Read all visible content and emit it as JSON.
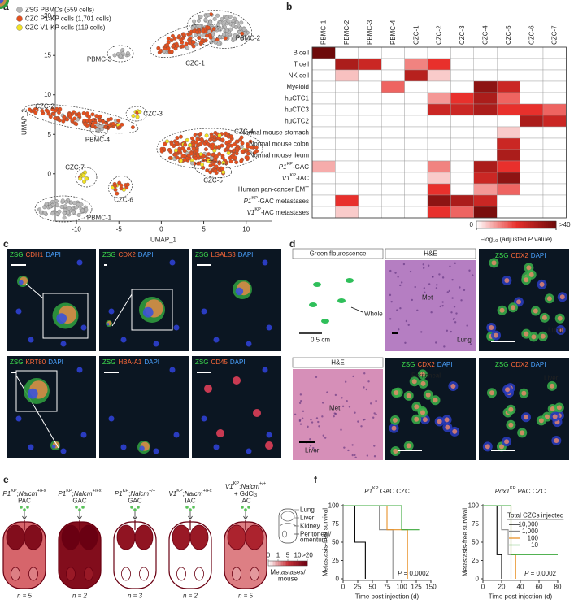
{
  "panel_labels": [
    "a",
    "b",
    "c",
    "d",
    "e",
    "f"
  ],
  "chart_data": [
    {
      "type": "scatter",
      "xlabel": "UMAP_1",
      "ylabel": "UMAP_2",
      "xlim": [
        -12.5,
        13
      ],
      "ylim": [
        -6,
        21
      ],
      "xticks": [
        -10,
        -5,
        0,
        5,
        10
      ],
      "yticks": [
        0,
        5,
        10,
        15,
        20
      ],
      "series": [
        {
          "name": "ZSG PBMCs (559 cells)",
          "color": "#b8b8b8"
        },
        {
          "name": "CZC P1-KP cells (1,701 cells)",
          "color": "#e4501e"
        },
        {
          "name": "CZC V1-KP cells (119 cells)",
          "color": "#f2e224"
        }
      ],
      "annotations": [
        "PBMC-2",
        "PBMC-3",
        "CZC-1",
        "CZC-2",
        "CZC-3",
        "PBMC-4",
        "CZC-4",
        "CZC-7",
        "CZC-5",
        "CZC-6",
        "PBMC-1"
      ]
    },
    {
      "type": "heatmap",
      "columns": [
        "PBMC-1",
        "PBMC-2",
        "PBMC-3",
        "PBMC-4",
        "CZC-1",
        "CZC-2",
        "CZC-3",
        "CZC-4",
        "CZC-5",
        "CZC-6",
        "CZC-7"
      ],
      "rows": [
        "B cell",
        "T cell",
        "NK cell",
        "Myeloid",
        "huCTC1",
        "huCTC3",
        "huCTC2",
        "Normal mouse stomach",
        "Normal mouse colon",
        "Normal mouse ileum",
        [
          {
            "t": "P1",
            "style": "italic"
          },
          {
            "t": "KP",
            "style": "sup"
          },
          {
            "t": "-GAC"
          }
        ],
        [
          {
            "t": "V1",
            "style": "italic"
          },
          {
            "t": "KP",
            "style": "sup"
          },
          {
            "t": "-IAC"
          }
        ],
        "Human pan-cancer EMT",
        [
          {
            "t": "P1",
            "style": "italic"
          },
          {
            "t": "KP",
            "style": "sup"
          },
          {
            "t": "-GAC metastases"
          }
        ],
        [
          {
            "t": "V1",
            "style": "italic"
          },
          {
            "t": "KP",
            "style": "sup"
          },
          {
            "t": "-IAC metastases"
          }
        ]
      ],
      "values": [
        [
          40,
          0,
          0,
          0,
          0,
          0,
          0,
          0,
          0,
          0,
          0
        ],
        [
          0,
          30,
          25,
          0,
          12,
          20,
          0,
          0,
          0,
          0,
          0
        ],
        [
          0,
          6,
          0,
          0,
          28,
          5,
          0,
          0,
          0,
          0,
          0
        ],
        [
          0,
          0,
          0,
          15,
          0,
          0,
          0,
          35,
          25,
          0,
          0
        ],
        [
          0,
          0,
          0,
          0,
          0,
          10,
          20,
          30,
          15,
          0,
          0
        ],
        [
          0,
          0,
          0,
          0,
          0,
          25,
          25,
          30,
          20,
          20,
          15
        ],
        [
          0,
          0,
          0,
          0,
          0,
          0,
          0,
          0,
          0,
          30,
          25
        ],
        [
          0,
          0,
          0,
          0,
          0,
          0,
          0,
          0,
          5,
          0,
          0
        ],
        [
          0,
          0,
          0,
          0,
          0,
          0,
          0,
          0,
          25,
          0,
          0
        ],
        [
          0,
          0,
          0,
          0,
          0,
          0,
          0,
          0,
          30,
          0,
          0
        ],
        [
          8,
          0,
          0,
          0,
          0,
          12,
          0,
          30,
          20,
          0,
          0
        ],
        [
          0,
          0,
          0,
          0,
          0,
          5,
          0,
          25,
          35,
          0,
          0
        ],
        [
          0,
          0,
          0,
          0,
          0,
          20,
          0,
          10,
          15,
          0,
          0
        ],
        [
          0,
          20,
          0,
          0,
          0,
          35,
          30,
          25,
          0,
          0,
          0
        ],
        [
          0,
          5,
          0,
          0,
          0,
          20,
          15,
          38,
          0,
          0,
          0
        ]
      ],
      "zlim": [
        0,
        40
      ],
      "zticks": [
        0,
        {
          "value": 40,
          "label": ">40"
        }
      ],
      "colorbar_label": [
        {
          "t": "–log"
        },
        {
          "t": "10",
          "style": "sub"
        },
        {
          "t": " (adjusted "
        },
        {
          "t": "P",
          "style": "italic"
        },
        {
          "t": " value)"
        }
      ]
    },
    {
      "type": "line",
      "title": [
        {
          "t": "P1",
          "style": "italic"
        },
        {
          "t": "KP",
          "style": "sup"
        },
        {
          "t": " GAC CZC"
        }
      ],
      "xlabel": "Time post injection (d)",
      "ylabel": "Metastasis-free survival",
      "xlim": [
        0,
        150
      ],
      "ylim": [
        0,
        100
      ],
      "xticks": [
        0,
        25,
        50,
        75,
        100,
        125,
        150
      ],
      "yticks": [
        0,
        25,
        50,
        75,
        100
      ],
      "annotation": [
        {
          "t": "P",
          "style": "italic"
        },
        {
          "t": " = 0.0002"
        }
      ],
      "series": [
        {
          "color": "#000000",
          "x": [
            0,
            20,
            38
          ],
          "values": [
            100,
            50,
            0
          ]
        },
        {
          "color": "#8a8a8a",
          "x": [
            0,
            62,
            85
          ],
          "values": [
            100,
            67,
            0
          ]
        },
        {
          "color": "#e8922a",
          "x": [
            0,
            75,
            110
          ],
          "values": [
            100,
            67,
            0
          ]
        },
        {
          "color": "#3aa83a",
          "x": [
            0,
            100,
            130
          ],
          "values": [
            100,
            67,
            67
          ]
        }
      ]
    },
    {
      "type": "line",
      "title": [
        {
          "t": "Pdx1",
          "style": "italic"
        },
        {
          "t": "KP",
          "style": "sup"
        },
        {
          "t": " PAC CZC"
        }
      ],
      "xlabel": "Time post injection (d)",
      "ylabel": "Metastasis-free survival",
      "xlim": [
        0,
        80
      ],
      "ylim": [
        0,
        100
      ],
      "xticks": [
        0,
        20,
        40,
        60,
        80
      ],
      "yticks": [
        0,
        25,
        50,
        75,
        100
      ],
      "annotation": [
        {
          "t": "P",
          "style": "italic"
        },
        {
          "t": " = 0.0002"
        }
      ],
      "legend_title": "Total CZCs injected",
      "series": [
        {
          "name": "10,000",
          "color": "#000000",
          "x": [
            0,
            15,
            20
          ],
          "values": [
            100,
            33,
            0
          ]
        },
        {
          "name": "1,000",
          "color": "#8a8a8a",
          "x": [
            0,
            20,
            27,
            30
          ],
          "values": [
            100,
            67,
            33,
            0
          ]
        },
        {
          "name": "100",
          "color": "#e8922a",
          "x": [
            0,
            30,
            35
          ],
          "values": [
            100,
            33,
            0
          ]
        },
        {
          "name": "10",
          "color": "#3aa83a",
          "x": [
            0,
            30,
            80
          ],
          "values": [
            100,
            33,
            33
          ]
        }
      ]
    }
  ],
  "c": {
    "tiles": [
      [
        "ZSG",
        "CDH1",
        "DAPI"
      ],
      [
        "ZSG",
        "CDX2",
        "DAPI"
      ],
      [
        "ZSG",
        "LGALS3",
        "DAPI"
      ],
      [
        "ZSG",
        "KRT80",
        "DAPI"
      ],
      [
        "ZSG",
        "HBA-A1",
        "DAPI"
      ],
      [
        "ZSG",
        "CD45",
        "DAPI"
      ]
    ]
  },
  "d": {
    "tiles": [
      {
        "header": "Green flourescence",
        "notes": [
          "Whole lung",
          "0.5 cm"
        ]
      },
      {
        "header": "H&E",
        "notes": [
          "Met",
          "Lung"
        ]
      },
      {
        "stain": [
          "ZSG",
          "CDX2",
          "DAPI"
        ],
        "notes": [
          "Lung"
        ]
      },
      {
        "header": "H&E",
        "notes": [
          "Met",
          "Liver"
        ]
      },
      {
        "stain": [
          "ZSG",
          "CDX2",
          "DAPI"
        ],
        "notes": [
          "Peritoneal"
        ]
      },
      {
        "stain": [
          "ZSG",
          "CDX2",
          "DAPI"
        ],
        "notes": [
          "Liver"
        ]
      }
    ]
  },
  "e": {
    "mice": [
      {
        "header": [
          [
            {
              "t": "P1",
              "style": "italic"
            },
            {
              "t": "KP",
              "style": "sup"
            },
            {
              "t": ";"
            },
            {
              "t": "Nalcm",
              "style": "italic"
            },
            {
              "t": "+/Fx",
              "style": "sup"
            }
          ],
          "PAC"
        ],
        "n": "n = 5",
        "organs": [
          15,
          12,
          2,
          3
        ]
      },
      {
        "header": [
          [
            {
              "t": "P1",
              "style": "italic"
            },
            {
              "t": "KP",
              "style": "sup"
            },
            {
              "t": ";"
            },
            {
              "t": "Nalcm",
              "style": "italic"
            },
            {
              "t": "+/Fx",
              "style": "sup"
            }
          ],
          "GAC"
        ],
        "n": "n = 2",
        "organs": [
          20,
          20,
          10,
          15
        ]
      },
      {
        "header": [
          [
            {
              "t": "P1",
              "style": "italic"
            },
            {
              "t": "KP",
              "style": "sup"
            },
            {
              "t": ";"
            },
            {
              "t": "Nalcm",
              "style": "italic"
            },
            {
              "t": "+/+",
              "style": "sup"
            }
          ],
          "GAC"
        ],
        "n": "n = 3",
        "organs": [
          12,
          0,
          0,
          0
        ]
      },
      {
        "header": [
          [
            {
              "t": "V1",
              "style": "italic"
            },
            {
              "t": "KP",
              "style": "sup"
            },
            {
              "t": ";"
            },
            {
              "t": "Nalcm",
              "style": "italic"
            },
            {
              "t": "+/Fx",
              "style": "sup"
            }
          ],
          "IAC"
        ],
        "n": "n = 2",
        "organs": [
          10,
          0,
          0,
          0
        ]
      },
      {
        "header": [
          [
            {
              "t": "V1",
              "style": "italic"
            },
            {
              "t": "KP",
              "style": "sup"
            },
            {
              "t": ";"
            },
            {
              "t": "Nalcm",
              "style": "italic"
            },
            {
              "t": "+/+",
              "style": "sup"
            }
          ],
          [
            {
              "t": "+ GdCl"
            },
            {
              "t": "3",
              "style": "sub"
            }
          ],
          "IAC"
        ],
        "n": "n = 5",
        "organs": [
          8,
          3,
          1,
          2
        ]
      }
    ],
    "organ_names": [
      [
        "Lung"
      ],
      [
        "Liver"
      ],
      [
        "Kidney"
      ],
      [
        "Peritoneal/",
        "omentum"
      ]
    ],
    "ticks": [
      0,
      1,
      5,
      10,
      {
        "value": 20,
        "label": ">20"
      }
    ],
    "colorbar_label": [
      "Metastases/",
      "mouse"
    ]
  }
}
